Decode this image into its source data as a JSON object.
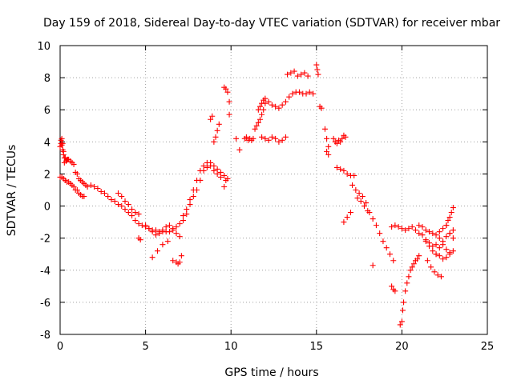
{
  "chart_data": {
    "type": "scatter",
    "title": "Day 159 of 2018, Sidereal Day-to-day VTEC variation (SDTVAR) for receiver mbar",
    "xlabel": "GPS time / hours",
    "ylabel": "SDTVAR / TECUs",
    "xlim": [
      0,
      25
    ],
    "ylim": [
      -8,
      10
    ],
    "xticks": [
      0,
      5,
      10,
      15,
      20,
      25
    ],
    "yticks": [
      -8,
      -6,
      -4,
      -2,
      0,
      2,
      4,
      6,
      8,
      10
    ],
    "xtick_labels": [
      "0",
      "5",
      "10",
      "15",
      "20",
      "25"
    ],
    "ytick_labels": [
      "-8",
      "-6",
      "-4",
      "-2",
      "0",
      "2",
      "4",
      "6",
      "8",
      "10"
    ],
    "grid": true,
    "marker": "plus",
    "color": "#ff0000",
    "series": [
      {
        "name": "SDTVAR",
        "x": [
          0.0,
          0.05,
          0.1,
          0.15,
          0.2,
          0.25,
          0.3,
          0.35,
          0.4,
          0.45,
          0.5,
          0.6,
          0.7,
          0.8,
          0.9,
          1.0,
          1.1,
          1.2,
          1.3,
          1.4,
          1.5,
          1.6,
          1.8,
          2.0,
          2.2,
          2.4,
          2.6,
          2.8,
          3.0,
          3.2,
          3.4,
          3.6,
          3.8,
          4.0,
          4.2,
          4.4,
          4.6,
          4.8,
          5.0,
          5.2,
          5.4,
          5.6,
          5.8,
          6.0,
          6.2,
          6.4,
          6.6,
          6.8,
          7.0,
          7.2,
          7.4,
          7.6,
          7.8,
          8.0,
          8.2,
          8.4,
          8.6,
          8.8,
          9.0,
          9.2,
          9.4,
          9.6,
          9.8,
          0.0,
          0.1,
          0.2,
          0.3,
          0.4,
          0.5,
          0.6,
          0.7,
          0.8,
          0.9,
          1.0,
          1.1,
          1.2,
          1.3,
          1.4,
          0.05,
          0.1,
          0.15,
          0.2,
          0.25,
          3.4,
          3.6,
          3.8,
          4.0,
          4.2,
          4.4,
          4.6,
          4.6,
          4.7,
          5.0,
          5.2,
          5.4,
          5.6,
          5.8,
          6.0,
          6.2,
          6.4,
          6.6,
          6.8,
          7.0,
          5.4,
          5.7,
          6.0,
          6.3,
          6.6,
          6.8,
          6.9,
          7.0,
          7.1,
          7.2,
          7.4,
          7.6,
          7.8,
          8.0,
          8.2,
          8.4,
          8.6,
          8.8,
          9.0,
          9.2,
          9.4,
          8.8,
          8.9,
          9.0,
          9.1,
          9.2,
          9.3,
          9.6,
          9.7,
          9.8,
          9.9,
          9.6,
          9.7,
          9.9,
          10.3,
          10.5,
          10.8,
          10.9,
          11.0,
          11.1,
          11.2,
          11.3,
          11.4,
          11.5,
          11.6,
          11.7,
          11.8,
          11.9,
          11.6,
          11.7,
          11.8,
          11.9,
          12.0,
          11.8,
          12.0,
          12.2,
          12.4,
          12.6,
          12.8,
          13.0,
          13.2,
          12.0,
          12.2,
          12.4,
          12.6,
          12.8,
          13.0,
          13.2,
          13.4,
          13.3,
          13.5,
          13.7,
          13.9,
          14.1,
          14.3,
          14.5,
          13.6,
          13.8,
          14.0,
          14.2,
          14.4,
          14.6,
          14.8,
          15.0,
          15.05,
          15.1,
          15.2,
          15.3,
          15.5,
          15.6,
          15.7,
          15.6,
          15.7,
          16.0,
          16.1,
          16.2,
          16.3,
          16.4,
          16.5,
          16.6,
          16.7,
          16.2,
          16.4,
          16.6,
          16.8,
          17.0,
          17.2,
          16.6,
          16.8,
          17.0,
          17.1,
          17.3,
          17.5,
          17.7,
          17.9,
          18.1,
          18.3,
          18.5,
          18.7,
          18.9,
          19.1,
          19.3,
          19.5,
          17.4,
          17.6,
          17.8,
          18.0,
          18.3,
          19.4,
          19.6,
          19.8,
          20.0,
          20.2,
          20.4,
          20.6,
          20.8,
          21.0,
          21.2,
          21.4,
          21.6,
          21.8,
          22.0,
          19.4,
          19.5,
          19.6,
          19.9,
          20.0,
          20.05,
          20.1,
          20.2,
          20.3,
          20.4,
          20.5,
          20.6,
          20.7,
          20.8,
          20.9,
          21.0,
          21.0,
          21.2,
          21.4,
          21.6,
          21.8,
          22.0,
          22.2,
          22.4,
          22.6,
          22.8,
          23.0,
          21.4,
          21.6,
          21.8,
          22.0,
          22.2,
          22.4,
          22.6,
          22.8,
          23.0,
          21.5,
          21.7,
          21.9,
          22.1,
          22.3,
          22.0,
          22.2,
          22.4,
          22.6,
          22.8,
          23.0,
          22.6,
          22.7,
          22.8,
          22.9,
          23.0,
          22.2,
          22.4,
          22.6,
          22.8
        ],
        "y": [
          3.7,
          3.9,
          3.8,
          3.5,
          3.2,
          3.0,
          3.0,
          2.8,
          2.9,
          2.9,
          2.9,
          2.8,
          2.7,
          2.6,
          2.1,
          2.0,
          1.7,
          1.6,
          1.5,
          1.4,
          1.3,
          1.2,
          1.3,
          1.2,
          1.1,
          0.9,
          0.8,
          0.6,
          0.4,
          0.3,
          0.1,
          0.0,
          -0.2,
          -0.4,
          -0.6,
          -0.9,
          -1.1,
          -1.2,
          -1.3,
          -1.4,
          -1.5,
          -1.5,
          -1.6,
          -1.6,
          -1.6,
          -1.6,
          -1.5,
          -1.3,
          -1.1,
          -0.9,
          -0.5,
          0.4,
          1.0,
          1.6,
          2.2,
          2.5,
          2.7,
          2.7,
          2.5,
          2.3,
          2.1,
          1.9,
          1.7,
          1.8,
          1.8,
          1.7,
          1.6,
          1.5,
          1.5,
          1.4,
          1.3,
          1.2,
          1.0,
          1.0,
          0.8,
          0.7,
          0.6,
          0.6,
          4.1,
          4.2,
          3.9,
          3.4,
          2.7,
          0.8,
          0.6,
          0.3,
          0.1,
          -0.2,
          -0.4,
          -0.5,
          -2.0,
          -2.1,
          -1.2,
          -1.4,
          -1.6,
          -1.8,
          -1.7,
          -1.5,
          -1.3,
          -1.2,
          -1.4,
          -1.7,
          -1.9,
          -3.2,
          -2.8,
          -2.4,
          -2.2,
          -3.4,
          -3.5,
          -3.6,
          -3.5,
          -3.1,
          -0.6,
          -0.2,
          0.1,
          0.6,
          1.0,
          1.6,
          2.2,
          2.4,
          2.5,
          2.2,
          2.0,
          1.8,
          5.4,
          5.6,
          4.0,
          4.3,
          4.7,
          5.1,
          7.4,
          7.3,
          7.1,
          6.5,
          1.2,
          1.6,
          5.7,
          4.2,
          3.5,
          4.2,
          4.3,
          4.1,
          4.2,
          4.1,
          4.2,
          4.8,
          5.0,
          5.2,
          5.4,
          5.7,
          6.0,
          6.0,
          6.2,
          6.4,
          6.6,
          6.7,
          4.3,
          4.2,
          4.1,
          4.3,
          4.2,
          4.0,
          4.1,
          4.3,
          6.4,
          6.5,
          6.3,
          6.2,
          6.1,
          6.3,
          6.5,
          6.8,
          8.2,
          8.3,
          8.4,
          8.1,
          8.2,
          8.3,
          8.1,
          7.0,
          7.1,
          7.1,
          7.0,
          7.0,
          7.1,
          7.0,
          8.8,
          8.5,
          8.2,
          6.2,
          6.1,
          4.8,
          4.2,
          3.7,
          3.4,
          3.2,
          4.2,
          4.0,
          3.9,
          4.1,
          4.0,
          4.2,
          4.4,
          4.3,
          2.4,
          2.3,
          2.2,
          2.0,
          1.9,
          1.9,
          -1.0,
          -0.7,
          -0.4,
          1.3,
          1.0,
          0.8,
          0.6,
          0.2,
          -0.4,
          -0.8,
          -1.2,
          -1.7,
          -2.2,
          -2.6,
          -3.0,
          -3.4,
          0.5,
          0.3,
          0.0,
          -0.3,
          -3.7,
          -1.3,
          -1.2,
          -1.3,
          -1.4,
          -1.5,
          -1.4,
          -1.3,
          -1.5,
          -1.7,
          -1.8,
          -2.1,
          -2.3,
          -2.5,
          -2.4,
          -5.0,
          -5.2,
          -5.3,
          -7.4,
          -7.2,
          -6.5,
          -6.0,
          -5.3,
          -4.8,
          -4.4,
          -4.0,
          -3.8,
          -3.6,
          -3.4,
          -3.3,
          -3.1,
          -1.2,
          -1.3,
          -1.5,
          -1.6,
          -1.7,
          -1.8,
          -1.6,
          -1.4,
          -1.2,
          -1.7,
          -2.0,
          -2.2,
          -2.5,
          -2.8,
          -3.0,
          -3.1,
          -3.3,
          -3.2,
          -3.0,
          -2.8,
          -3.4,
          -3.8,
          -4.1,
          -4.3,
          -4.4,
          -3.0,
          -2.6,
          -2.2,
          -1.9,
          -1.7,
          -1.5,
          -1.2,
          -0.9,
          -0.7,
          -0.4,
          -0.1,
          -2.0,
          -2.4,
          -2.7,
          -2.9
        ]
      }
    ]
  }
}
